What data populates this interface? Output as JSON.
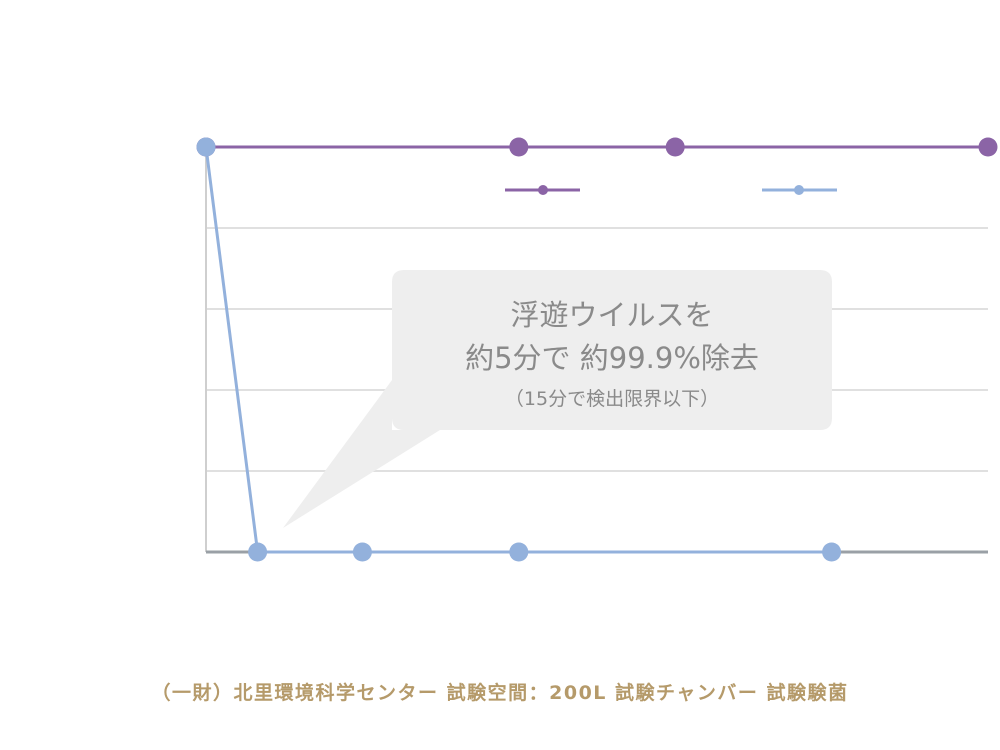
{
  "chart_data": {
    "type": "line",
    "x": [
      0,
      1,
      2,
      3,
      5
    ],
    "ylim": [
      0,
      5
    ],
    "grid": true,
    "series": [
      {
        "color": "#8b64a6",
        "x": [
          0,
          2,
          3,
          5
        ],
        "values": [
          5,
          5,
          5,
          5
        ]
      },
      {
        "color": "#93b1dc",
        "x": [
          0,
          0.33,
          1,
          2,
          4
        ],
        "values": [
          5,
          0,
          0,
          0,
          0
        ]
      }
    ]
  },
  "callout": {
    "line1": "浮遊ウイルスを",
    "line2": "約5分で 約99.9%除去",
    "line3": "（15分で検出限界以下）"
  },
  "caption": "（一財）北里環境科学センター 試験空間：200L 試験チャンバー 試験験菌"
}
